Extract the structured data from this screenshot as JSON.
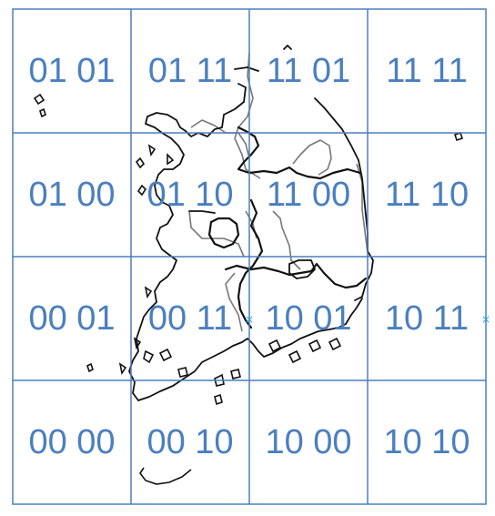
{
  "grid": {
    "rows": [
      [
        "01 01",
        "01 11",
        "11 01",
        "11 11"
      ],
      [
        "01 00",
        "01 10",
        "11 00",
        "11 10"
      ],
      [
        "00 01",
        "00 11",
        "10 01",
        "10 11"
      ],
      [
        "00 00",
        "00 10",
        "10 00",
        "10 10"
      ]
    ],
    "line_color": "#4a7fc0",
    "label_color": "#4a7fc0"
  },
  "map": {
    "coast_color": "#111111",
    "boundary_color": "#777777",
    "marker_color": "#29a8e0",
    "marker_symbol": "×"
  }
}
